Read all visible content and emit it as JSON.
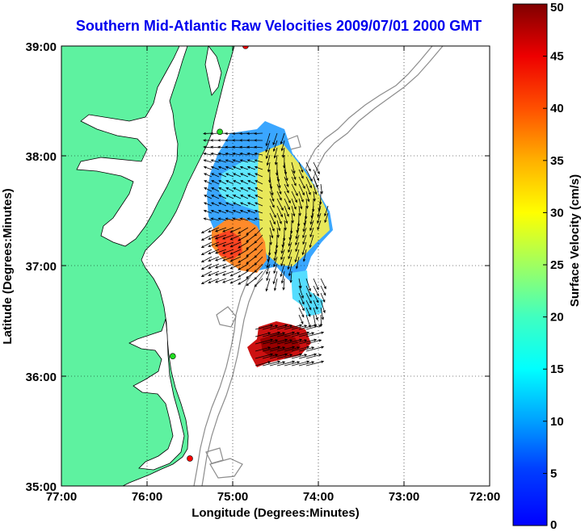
{
  "title": "Southern Mid-Atlantic Raw Velocities 2009/07/01 2000 GMT",
  "map": {
    "xlabel": "Longitude (Degrees:Minutes)",
    "ylabel": "Latitude (Degrees:Minutes)",
    "lon_ticks": [
      "77:00",
      "76:00",
      "75:00",
      "74:00",
      "73:00",
      "72:00"
    ],
    "lat_ticks": [
      "39:00",
      "38:00",
      "37:00",
      "36:00",
      "35:00"
    ],
    "lon_range": [
      -77,
      -72
    ],
    "lat_range": [
      35,
      39
    ],
    "grid": "dotted",
    "colors": {
      "land": "#5ef2a0",
      "water": "#ffffff",
      "bathymetry": "#8c8c8c",
      "coastline": "#000000",
      "station_red": "#ff0000",
      "station_green": "#22dd22"
    },
    "stations": [
      {
        "name": "red-station-north",
        "lon": -74.85,
        "lat": 39.0,
        "color": "#ff0000"
      },
      {
        "name": "green-station-cape-henlopen",
        "lon": -75.15,
        "lat": 38.22,
        "color": "#22dd22"
      },
      {
        "name": "green-station-duck",
        "lon": -75.7,
        "lat": 36.18,
        "color": "#22dd22"
      },
      {
        "name": "red-station-hatteras",
        "lon": -75.5,
        "lat": 35.25,
        "color": "#ff0000"
      }
    ]
  },
  "colorbar": {
    "label": "Surface Velocity (cm/s)",
    "ticks": [
      "0",
      "5",
      "10",
      "15",
      "20",
      "25",
      "30",
      "35",
      "40",
      "45",
      "50"
    ],
    "min": 0,
    "max": 50,
    "colormap": "jet"
  }
}
